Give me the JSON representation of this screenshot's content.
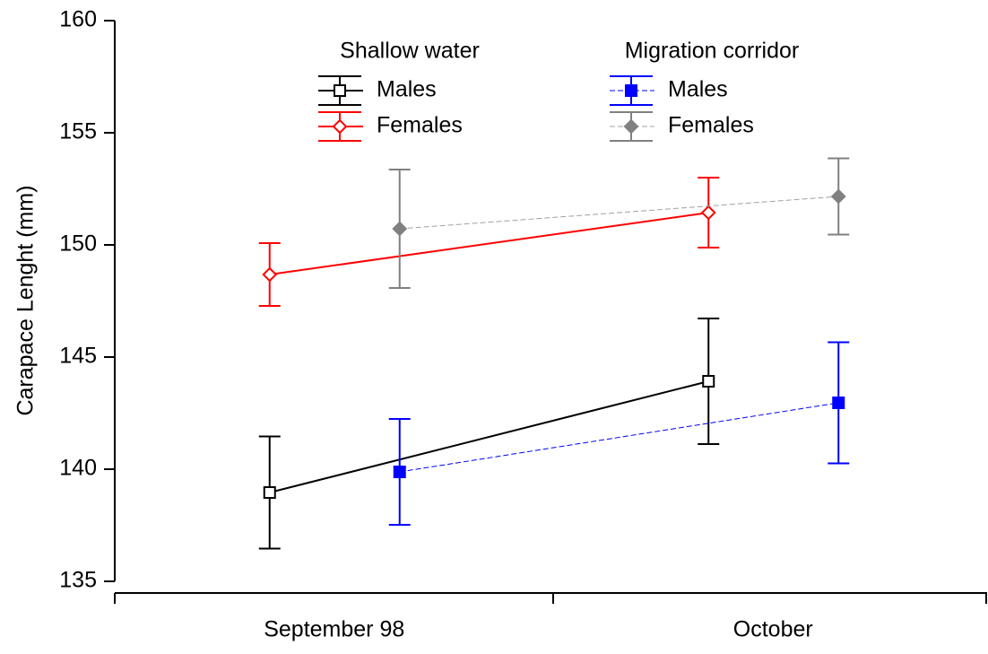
{
  "chart_data": {
    "type": "errorbar-line",
    "y_label": "Carapace Lenght (mm)",
    "categories": [
      "September 98",
      "October"
    ],
    "ylim": [
      135,
      160
    ],
    "yticks": [
      135,
      140,
      145,
      150,
      155,
      160
    ],
    "groups": [
      {
        "title": "Shallow water",
        "series": [
          {
            "name": "Males",
            "color": "#000000",
            "marker": "square",
            "filled": false,
            "dashed": false,
            "values": [
              138.96,
              143.92
            ],
            "errors": [
              2.5,
              2.8
            ]
          },
          {
            "name": "Females",
            "color": "#ff0000",
            "marker": "diamond",
            "filled": false,
            "dashed": false,
            "values": [
              148.68,
              151.44
            ],
            "errors": [
              1.4,
              1.56
            ]
          }
        ]
      },
      {
        "title": "Migration corridor",
        "series": [
          {
            "name": "Males",
            "color": "#0000ff",
            "marker": "square",
            "filled": true,
            "dashed": true,
            "values": [
              139.88,
              142.96
            ],
            "errors": [
              2.36,
              2.7
            ]
          },
          {
            "name": "Females",
            "color": "#808080",
            "marker": "diamond",
            "filled": true,
            "dashed": true,
            "values": [
              150.72,
              152.16
            ],
            "errors": [
              2.64,
              1.7
            ]
          }
        ]
      }
    ]
  }
}
